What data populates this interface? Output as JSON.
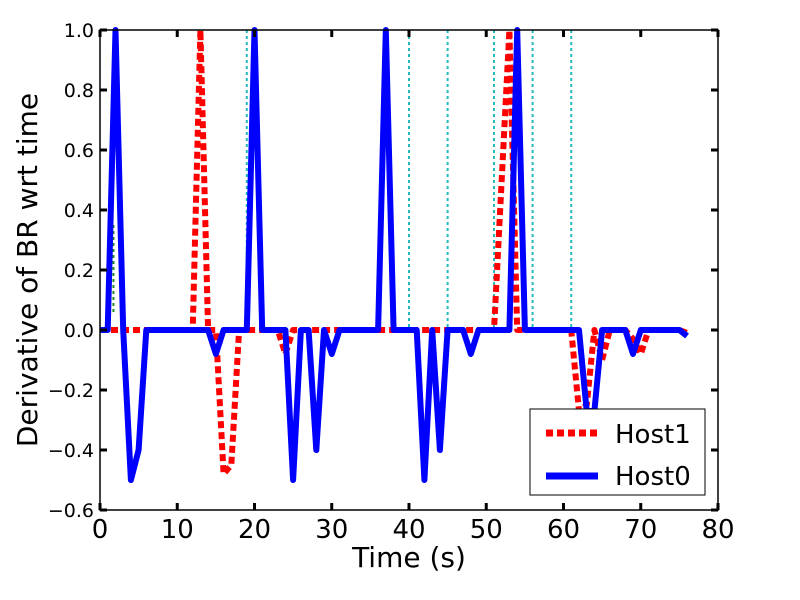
{
  "chart_data": {
    "type": "line",
    "xlabel": "Time (s)",
    "ylabel": "Derivative of BR wrt time",
    "xlim": [
      0,
      80
    ],
    "ylim": [
      -0.6,
      1.0
    ],
    "xticks": [
      "0",
      "10",
      "20",
      "30",
      "40",
      "50",
      "60",
      "70",
      "80"
    ],
    "yticks": [
      "1.0",
      "0.8",
      "0.6",
      "0.4",
      "0.2",
      "0.0",
      "−0.2",
      "−0.4",
      "−0.6"
    ],
    "legend_position": "lower-right",
    "grid": false,
    "series": [
      {
        "name": "Host1",
        "style": "dotted",
        "color": "#ff0000",
        "x": [
          0,
          10,
          12,
          13,
          14,
          15,
          16,
          17,
          18,
          19,
          20,
          21,
          22,
          23,
          24,
          25,
          26,
          30,
          35,
          40,
          45,
          50,
          51,
          52,
          53,
          54,
          55,
          56,
          60,
          61,
          62,
          63,
          64,
          65,
          66,
          67,
          68,
          69,
          70,
          71,
          72,
          75,
          76
        ],
        "y": [
          0,
          0,
          0,
          1.0,
          0,
          0,
          -0.48,
          -0.45,
          0,
          0,
          0,
          0,
          0,
          0,
          -0.08,
          0,
          0,
          0,
          0,
          0,
          0,
          0,
          0,
          0.5,
          1.0,
          0,
          0,
          0,
          0,
          0,
          -0.27,
          -0.25,
          0,
          -0.1,
          0,
          0,
          0,
          -0.03,
          -0.08,
          0,
          0,
          0,
          -0.01
        ]
      },
      {
        "name": "Host0",
        "style": "solid",
        "color": "#0000ff",
        "x": [
          0,
          1,
          2,
          3,
          4,
          5,
          6,
          10,
          14,
          15,
          16,
          17,
          18,
          19,
          20,
          21,
          22,
          23,
          24,
          25,
          26,
          27,
          28,
          29,
          30,
          31,
          32,
          35,
          36,
          37,
          38,
          39,
          40,
          41,
          42,
          43,
          44,
          45,
          46,
          47,
          48,
          49,
          50,
          52,
          53,
          54,
          55,
          56,
          60,
          62,
          63,
          64,
          65,
          66,
          67,
          68,
          69,
          70,
          71,
          72,
          75,
          76
        ],
        "y": [
          0,
          0,
          1.0,
          0,
          -0.5,
          -0.4,
          0,
          0,
          0,
          -0.08,
          0,
          0,
          0,
          0,
          1.0,
          0,
          0,
          0,
          0,
          -0.5,
          0,
          0,
          -0.4,
          0,
          -0.08,
          0,
          0,
          0,
          0,
          1.0,
          0,
          0,
          0,
          0,
          -0.5,
          0,
          -0.4,
          0,
          0,
          0,
          -0.08,
          0,
          0,
          0,
          0,
          1.0,
          0,
          0,
          0,
          0,
          -0.27,
          -0.27,
          0,
          0,
          0,
          0,
          -0.08,
          0,
          0,
          0,
          0,
          -0.02
        ]
      }
    ],
    "annotations": {
      "vertical_dotted_lines": {
        "color": "#22bbbb",
        "x": [
          19,
          40,
          45,
          51,
          56,
          61
        ]
      },
      "short_green_marks": {
        "color": "#228822",
        "x": [
          2
        ]
      }
    }
  }
}
